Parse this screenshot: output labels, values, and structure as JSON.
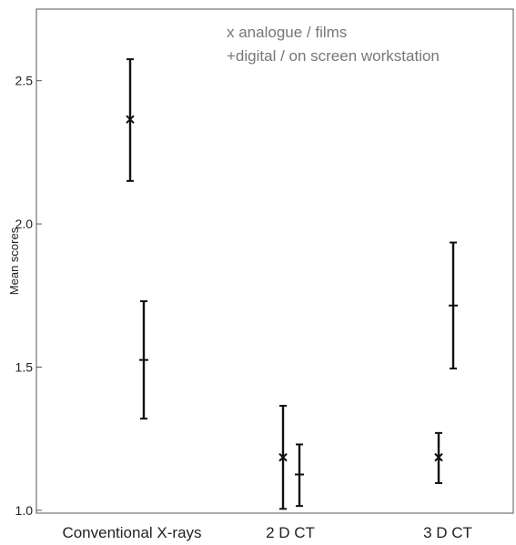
{
  "chart_data": {
    "type": "scatter",
    "title": "",
    "xlabel": "",
    "ylabel": "Mean scores",
    "categories": [
      "Conventional X-rays",
      "2 D CT",
      "3 D CT"
    ],
    "ylim": [
      0.99,
      2.75
    ],
    "yticks": [
      "1.0",
      "1.5",
      "2.0",
      "2.5"
    ],
    "grid": false,
    "legend_position": "top-right",
    "legend_color": "#777777",
    "series": [
      {
        "name": "analogue / films",
        "marker": "x",
        "color": "#111111",
        "legend_label": "x analogue / films",
        "points": [
          {
            "category": "Conventional X-rays",
            "mean": 2.365,
            "low": 2.15,
            "high": 2.575
          },
          {
            "category": "2 D CT",
            "mean": 1.185,
            "low": 1.005,
            "high": 1.365
          },
          {
            "category": "3 D CT",
            "mean": 1.185,
            "low": 1.095,
            "high": 1.27
          }
        ]
      },
      {
        "name": "digital / on screen workstation",
        "marker": "+",
        "color": "#111111",
        "legend_label": "+digital / on screen workstation",
        "points": [
          {
            "category": "Conventional X-rays",
            "mean": 1.525,
            "low": 1.32,
            "high": 1.73
          },
          {
            "category": "2 D CT",
            "mean": 1.125,
            "low": 1.015,
            "high": 1.23
          },
          {
            "category": "3 D CT",
            "mean": 1.715,
            "low": 1.495,
            "high": 1.935
          }
        ]
      }
    ]
  }
}
